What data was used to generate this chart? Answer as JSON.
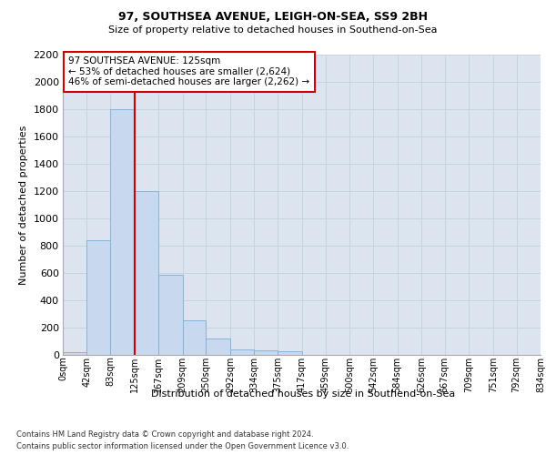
{
  "title1": "97, SOUTHSEA AVENUE, LEIGH-ON-SEA, SS9 2BH",
  "title2": "Size of property relative to detached houses in Southend-on-Sea",
  "xlabel": "Distribution of detached houses by size in Southend-on-Sea",
  "ylabel": "Number of detached properties",
  "footnote1": "Contains HM Land Registry data © Crown copyright and database right 2024.",
  "footnote2": "Contains public sector information licensed under the Open Government Licence v3.0.",
  "bin_edges": [
    0,
    42,
    83,
    125,
    167,
    209,
    250,
    292,
    334,
    375,
    417,
    459,
    500,
    542,
    584,
    626,
    667,
    709,
    751,
    792,
    834
  ],
  "bin_labels": [
    "0sqm",
    "42sqm",
    "83sqm",
    "125sqm",
    "167sqm",
    "209sqm",
    "250sqm",
    "292sqm",
    "334sqm",
    "375sqm",
    "417sqm",
    "459sqm",
    "500sqm",
    "542sqm",
    "584sqm",
    "626sqm",
    "667sqm",
    "709sqm",
    "751sqm",
    "792sqm",
    "834sqm"
  ],
  "bar_heights": [
    20,
    840,
    1800,
    1200,
    590,
    255,
    120,
    40,
    35,
    25,
    0,
    0,
    0,
    0,
    0,
    0,
    0,
    0,
    0,
    0
  ],
  "bar_color": "#c8d9ef",
  "bar_edge_color": "#7bafd4",
  "vline_x": 125,
  "vline_color": "#cc0000",
  "ylim": [
    0,
    2200
  ],
  "yticks": [
    0,
    200,
    400,
    600,
    800,
    1000,
    1200,
    1400,
    1600,
    1800,
    2000,
    2200
  ],
  "annotation_line1": "97 SOUTHSEA AVENUE: 125sqm",
  "annotation_line2": "← 53% of detached houses are smaller (2,624)",
  "annotation_line3": "46% of semi-detached houses are larger (2,262) →",
  "annotation_box_color": "#ffffff",
  "annotation_box_edge": "#cc0000",
  "grid_color": "#c8d2e0",
  "bg_color": "#dce4ef",
  "title1_fontsize": 9,
  "title2_fontsize": 8,
  "ylabel_fontsize": 8,
  "xlabel_fontsize": 8,
  "ytick_fontsize": 8,
  "xtick_fontsize": 7,
  "annot_fontsize": 7.5,
  "footnote_fontsize": 6
}
